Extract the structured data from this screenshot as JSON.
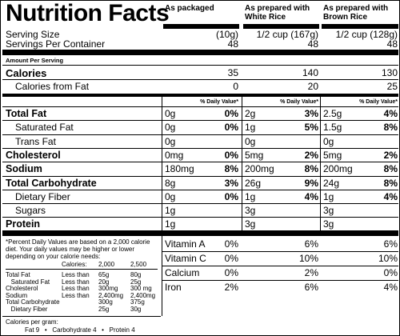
{
  "title": "Nutrition Facts",
  "columns": [
    {
      "heading_line1": "As packaged",
      "heading_line2": "",
      "serving_size": "(10g)",
      "servings": "48"
    },
    {
      "heading_line1": "As prepared with",
      "heading_line2": "White Rice",
      "serving_size": "1/2 cup  (167g)",
      "servings": "48"
    },
    {
      "heading_line1": "As prepared with",
      "heading_line2": "Brown Rice",
      "serving_size": "1/2 cup  (128g)",
      "servings": "48"
    }
  ],
  "labels": {
    "serving_size": "Serving Size",
    "servings_per_container": "Servings Per Container",
    "amount_per_serving": "Amount Per Serving",
    "calories": "Calories",
    "calories_from_fat": "Calories from Fat",
    "daily_value": "% Daily Value*"
  },
  "calories": [
    "35",
    "140",
    "130"
  ],
  "calories_from_fat": [
    "0",
    "20",
    "25"
  ],
  "nutrients": [
    {
      "name": "Total Fat",
      "bold": true,
      "indent": false,
      "cols": [
        [
          "0g",
          "0%"
        ],
        [
          "2g",
          "3%"
        ],
        [
          "2.5g",
          "4%"
        ]
      ]
    },
    {
      "name": "Saturated Fat",
      "bold": false,
      "indent": true,
      "cols": [
        [
          "0g",
          "0%"
        ],
        [
          "1g",
          "5%"
        ],
        [
          "1.5g",
          "8%"
        ]
      ]
    },
    {
      "name": "Trans Fat",
      "bold": false,
      "indent": true,
      "cols": [
        [
          "0g",
          ""
        ],
        [
          "0g",
          ""
        ],
        [
          "0g",
          ""
        ]
      ]
    },
    {
      "name": "Cholesterol",
      "bold": true,
      "indent": false,
      "cols": [
        [
          "0mg",
          "0%"
        ],
        [
          "5mg",
          "2%"
        ],
        [
          "5mg",
          "2%"
        ]
      ]
    },
    {
      "name": "Sodium",
      "bold": true,
      "indent": false,
      "cols": [
        [
          "180mg",
          "8%"
        ],
        [
          "200mg",
          "8%"
        ],
        [
          "200mg",
          "8%"
        ]
      ]
    },
    {
      "name": "Total Carbohydrate",
      "bold": true,
      "indent": false,
      "cols": [
        [
          "8g",
          "3%"
        ],
        [
          "26g",
          "9%"
        ],
        [
          "24g",
          "8%"
        ]
      ]
    },
    {
      "name": "Dietary Fiber",
      "bold": false,
      "indent": true,
      "cols": [
        [
          "0g",
          "0%"
        ],
        [
          "1g",
          "4%"
        ],
        [
          "1g",
          "4%"
        ]
      ]
    },
    {
      "name": "Sugars",
      "bold": false,
      "indent": true,
      "cols": [
        [
          "1g",
          ""
        ],
        [
          "3g",
          ""
        ],
        [
          "3g",
          ""
        ]
      ]
    },
    {
      "name": "Protein",
      "bold": true,
      "indent": false,
      "cols": [
        [
          "1g",
          ""
        ],
        [
          "3g",
          ""
        ],
        [
          "3g",
          ""
        ]
      ]
    }
  ],
  "vitamins": [
    {
      "name": "Vitamin A",
      "values": [
        "0%",
        "6%",
        "6%"
      ]
    },
    {
      "name": "Vitamin C",
      "values": [
        "0%",
        "10%",
        "10%"
      ]
    },
    {
      "name": "Calcium",
      "values": [
        "0%",
        "2%",
        "0%"
      ]
    },
    {
      "name": "Iron",
      "values": [
        "2%",
        "6%",
        "4%"
      ]
    }
  ],
  "footnote": {
    "intro_line1": "*Percent Daily Values are based on a 2,000 calorie",
    "intro_line2": "diet. Your daily values may be higher or lower",
    "intro_line3": "depending on your calorie needs:",
    "calories_label": "Calories:",
    "cal_2000": "2,000",
    "cal_2500": "2,500",
    "rows": [
      {
        "name": "Total Fat",
        "limit": "Less than",
        "v1": "65g",
        "v2": "80g"
      },
      {
        "name": "   Saturated Fat",
        "limit": "Less than",
        "v1": "20g",
        "v2": "25g"
      },
      {
        "name": "Cholesterol",
        "limit": "Less than",
        "v1": "300mg",
        "v2": "300 mg"
      },
      {
        "name": "Sodium",
        "limit": "Less than",
        "v1": "2,400mg",
        "v2": "2,400mg"
      },
      {
        "name": "Total Carbohydrate",
        "limit": "",
        "v1": "300g",
        "v2": "375g"
      },
      {
        "name": "   Dietary Fiber",
        "limit": "",
        "v1": "25g",
        "v2": "30g"
      }
    ],
    "per_gram_label": "Calories per gram:",
    "per_gram": "Fat 9   •   Carbohydrate 4   •   Protein 4"
  }
}
